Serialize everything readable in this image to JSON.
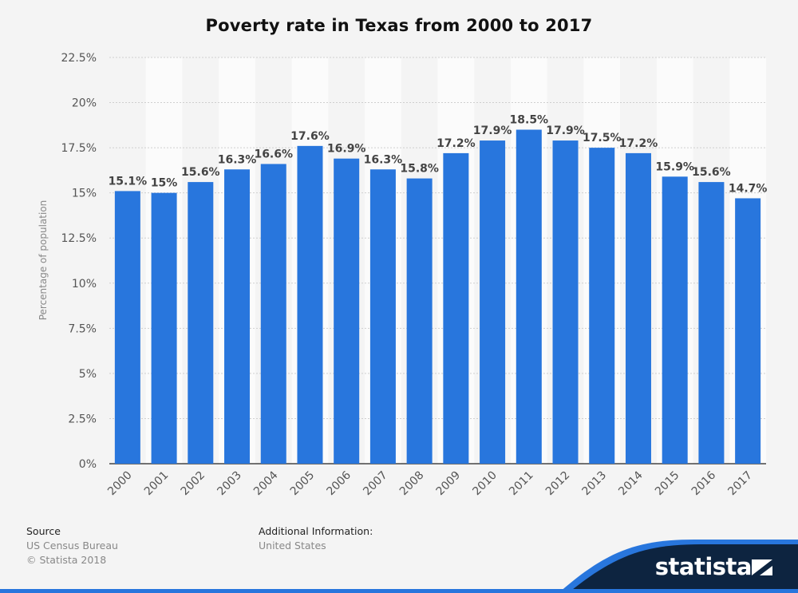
{
  "title": "Poverty rate in Texas from 2000 to 2017",
  "footer": {
    "source_label": "Source",
    "source_lines": [
      "US Census Bureau",
      "© Statista 2018"
    ],
    "info_label": "Additional Information:",
    "info_value": "United States"
  },
  "brand": {
    "name": "statista",
    "icon": "statista-flag-icon"
  },
  "colors": {
    "bar": "#2876dd",
    "background": "#f4f4f4",
    "brand_dark": "#0d2440",
    "brand_blue": "#2876dd"
  },
  "chart_data": {
    "type": "bar",
    "title": "Poverty rate in Texas from 2000 to 2017",
    "ylabel": "Percentage of population",
    "xlabel": "",
    "categories": [
      "2000",
      "2001",
      "2002",
      "2003",
      "2004",
      "2005",
      "2006",
      "2007",
      "2008",
      "2009",
      "2010",
      "2011",
      "2012",
      "2013",
      "2014",
      "2015",
      "2016",
      "2017"
    ],
    "values": [
      15.1,
      15,
      15.6,
      16.3,
      16.6,
      17.6,
      16.9,
      16.3,
      15.8,
      17.2,
      17.9,
      18.5,
      17.9,
      17.5,
      17.2,
      15.9,
      15.6,
      14.7
    ],
    "value_labels": [
      "15.1%",
      "15%",
      "15.6%",
      "16.3%",
      "16.6%",
      "17.6%",
      "16.9%",
      "16.3%",
      "15.8%",
      "17.2%",
      "17.9%",
      "18.5%",
      "17.9%",
      "17.5%",
      "17.2%",
      "15.9%",
      "15.6%",
      "14.7%"
    ],
    "ylim": [
      0,
      22.5
    ],
    "yticks": [
      "0%",
      "2.5%",
      "5%",
      "7.5%",
      "10%",
      "12.5%",
      "15%",
      "17.5%",
      "20%",
      "22.5%"
    ],
    "grid": true,
    "legend": "none"
  }
}
